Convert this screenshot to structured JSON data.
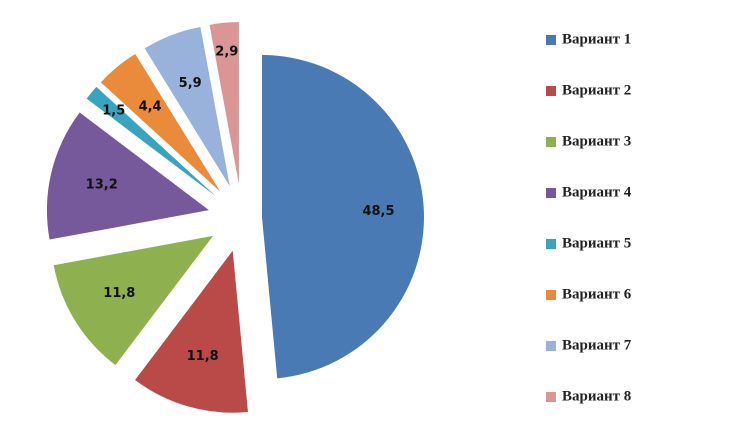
{
  "chart_data": {
    "type": "pie",
    "categories": [
      "Вариант 1",
      "Вариант 2",
      "Вариант 3",
      "Вариант 4",
      "Вариант 5",
      "Вариант 6",
      "Вариант 7",
      "Вариант 8"
    ],
    "values": [
      48.5,
      11.8,
      11.8,
      13.2,
      1.5,
      4.4,
      5.9,
      2.9
    ],
    "value_labels": [
      "48,5",
      "11,8",
      "11,8",
      "13,2",
      "1,5",
      "4,4",
      "5,9",
      "2,9"
    ],
    "colors": [
      "#4a7ab4",
      "#b94a48",
      "#8fb04f",
      "#76599b",
      "#3aa4be",
      "#e98b3a",
      "#98b2dc",
      "#d99694"
    ],
    "legend": "right"
  }
}
